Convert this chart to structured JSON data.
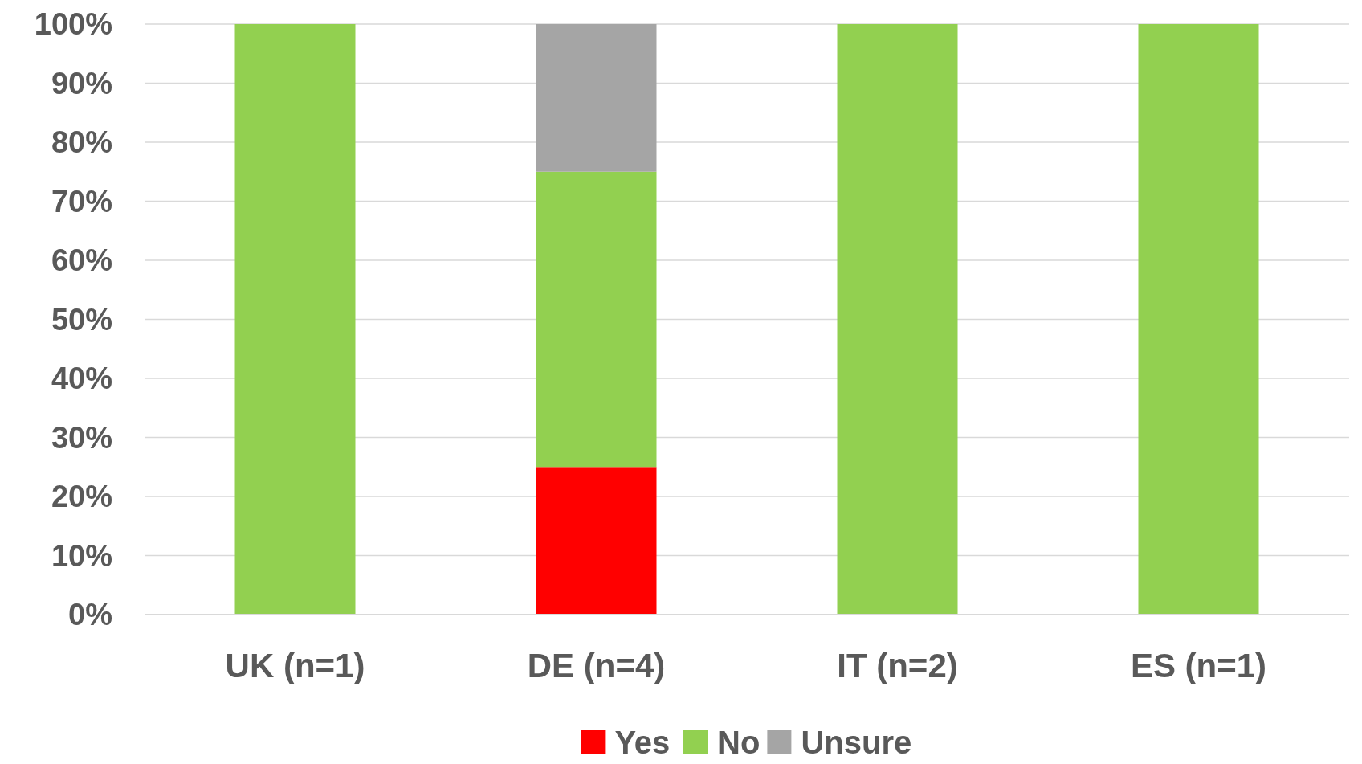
{
  "chart_data": {
    "type": "bar",
    "stacked": true,
    "categories": [
      "UK (n=1)",
      "DE (n=4)",
      "IT (n=2)",
      "ES (n=1)"
    ],
    "series": [
      {
        "name": "Yes",
        "color": "#ff0000",
        "values": [
          0,
          25,
          0,
          0
        ]
      },
      {
        "name": "No",
        "color": "#92d050",
        "values": [
          100,
          50,
          100,
          100
        ]
      },
      {
        "name": "Unsure",
        "color": "#a5a5a5",
        "values": [
          0,
          25,
          0,
          0
        ]
      }
    ],
    "ylim": [
      0,
      100
    ],
    "yticks": [
      {
        "value": 0,
        "label": "0%"
      },
      {
        "value": 10,
        "label": "10%"
      },
      {
        "value": 20,
        "label": "20%"
      },
      {
        "value": 30,
        "label": "30%"
      },
      {
        "value": 40,
        "label": "40%"
      },
      {
        "value": 50,
        "label": "50%"
      },
      {
        "value": 60,
        "label": "60%"
      },
      {
        "value": 70,
        "label": "70%"
      },
      {
        "value": 80,
        "label": "80%"
      },
      {
        "value": 90,
        "label": "90%"
      },
      {
        "value": 100,
        "label": "100%"
      }
    ],
    "grid": "y",
    "legend": "bottom"
  }
}
